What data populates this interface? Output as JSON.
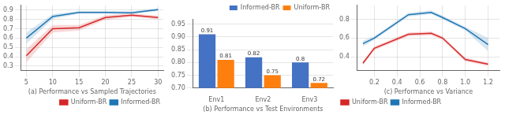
{
  "chart_data": [
    {
      "type": "line",
      "xlabel": "(a) Performance vs Sampled Trajectories",
      "x": [
        5,
        10,
        15,
        20,
        25,
        30
      ],
      "series": [
        {
          "name": "Uniform-BR",
          "color": "#d62728",
          "values": [
            0.41,
            0.7,
            0.71,
            0.82,
            0.845,
            0.82
          ],
          "error_lo": [
            0.07,
            0.04,
            0.03,
            0.025,
            0.02,
            0.02
          ],
          "error_hi": [
            0.07,
            0.04,
            0.03,
            0.025,
            0.02,
            0.02
          ]
        },
        {
          "name": "Informed-BR",
          "color": "#1f77b4",
          "values": [
            0.6,
            0.83,
            0.875,
            0.875,
            0.87,
            0.905
          ],
          "error_lo": [
            0.06,
            0.025,
            0.015,
            0.015,
            0.015,
            0.015
          ],
          "error_hi": [
            0.06,
            0.025,
            0.015,
            0.015,
            0.015,
            0.015
          ]
        }
      ],
      "xlim": [
        4,
        31
      ],
      "xticks": [
        5,
        10,
        15,
        20,
        25,
        30
      ],
      "ylim": [
        0.25,
        0.95
      ],
      "yticks": [
        0.3,
        0.4,
        0.5,
        0.6,
        0.7,
        0.8,
        0.9
      ],
      "grid": true,
      "legend": "lower right"
    },
    {
      "type": "bar",
      "xlabel": "(b) Performance vs Test Environments",
      "categories": [
        "Env1",
        "Env2",
        "Env3"
      ],
      "series": [
        {
          "name": "Informed-BR",
          "color": "#4472c4",
          "values": [
            0.91,
            0.82,
            0.8
          ]
        },
        {
          "name": "Uniform-BR",
          "color": "#ff7f0e",
          "values": [
            0.81,
            0.75,
            0.72
          ]
        }
      ],
      "ylim": [
        0.7,
        0.97
      ],
      "yticks": [
        {
          "value": 0.7,
          "label": "0.70"
        },
        0.75,
        {
          "value": 0.8,
          "label": "0.80"
        },
        0.85,
        {
          "value": 0.9,
          "label": "0.90"
        },
        0.95
      ],
      "grid": "y",
      "legend": "upper right",
      "data_labels": true
    },
    {
      "type": "line",
      "xlabel": "(c) Performance vs Variance",
      "x": [
        0.1,
        0.2,
        0.5,
        0.7,
        0.8,
        1.0,
        1.2
      ],
      "series": [
        {
          "name": "Uniform-BR",
          "color": "#d62728",
          "values": [
            0.33,
            0.49,
            0.64,
            0.65,
            0.6,
            0.37,
            0.32
          ],
          "error_lo": [
            0.02,
            0.02,
            0.02,
            0.02,
            0.02,
            0.02,
            0.02
          ],
          "error_hi": [
            0.02,
            0.02,
            0.02,
            0.02,
            0.02,
            0.02,
            0.02
          ]
        },
        {
          "name": "Informed-BR",
          "color": "#1f77b4",
          "values": [
            0.54,
            0.6,
            0.85,
            0.875,
            0.82,
            0.7,
            0.53
          ],
          "error_lo": [
            0.03,
            0.02,
            0.02,
            0.02,
            0.02,
            0.02,
            0.07
          ],
          "error_hi": [
            0.03,
            0.02,
            0.02,
            0.02,
            0.02,
            0.02,
            0.07
          ]
        }
      ],
      "xlim": [
        0.05,
        1.3
      ],
      "xticks": [
        0.2,
        0.4,
        0.6,
        0.8,
        {
          "value": 1.0,
          "label": "1.0"
        },
        1.2
      ],
      "ylim": [
        0.25,
        0.95
      ],
      "yticks": [
        0.4,
        0.6,
        0.8
      ],
      "grid": true,
      "legend": "lower left"
    }
  ]
}
